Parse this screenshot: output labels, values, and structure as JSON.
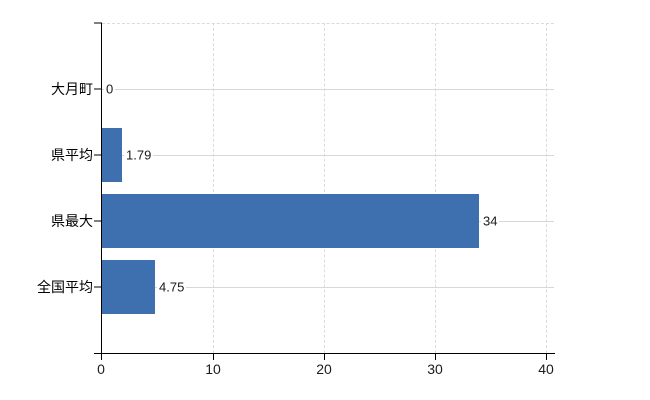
{
  "chart_data": {
    "type": "bar",
    "orientation": "horizontal",
    "title": "",
    "xlabel": "",
    "ylabel": "",
    "categories": [
      "大月町",
      "県平均",
      "県最大",
      "全国平均"
    ],
    "values": [
      0,
      1.79,
      34,
      4.75
    ],
    "value_labels": [
      "0",
      "1.79",
      "34",
      "4.75"
    ],
    "xlim": [
      0,
      40
    ],
    "x_tick_values": [
      0,
      10,
      20,
      30,
      40
    ],
    "x_tick_labels": [
      "0",
      "10",
      "20",
      "30",
      "40"
    ],
    "legend": false,
    "grid": true,
    "grid_style": {
      "vertical": "dashed",
      "horizontal": "solid",
      "top_border": "dashed"
    },
    "colors": {
      "bar": "#3e6fae",
      "grid_horizontal": "#d3dad3",
      "grid_vertical": "#dbdbdb",
      "axis": "#000000",
      "text": "#1a1a1a"
    }
  }
}
